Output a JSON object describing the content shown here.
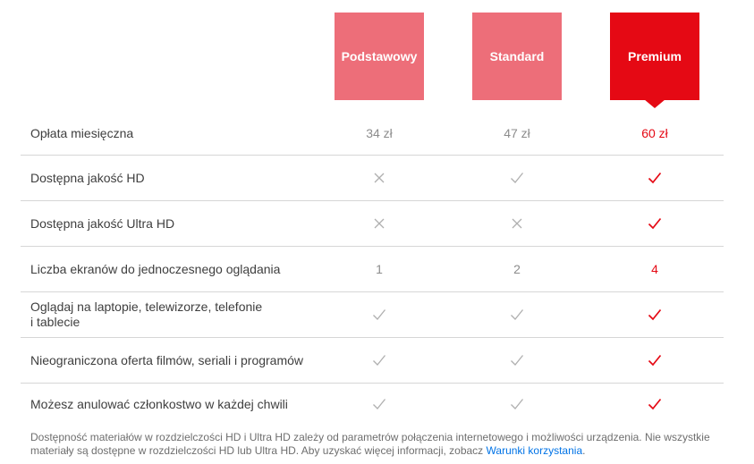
{
  "plans": [
    {
      "name": "Podstawowy",
      "selected": false
    },
    {
      "name": "Standard",
      "selected": false
    },
    {
      "name": "Premium",
      "selected": true
    }
  ],
  "rows": [
    {
      "label": "Opłata miesięczna",
      "values": [
        "34 zł",
        "47 zł",
        "60 zł"
      ]
    },
    {
      "label": "Dostępna jakość HD",
      "values": [
        "no",
        "yes",
        "yes"
      ]
    },
    {
      "label": "Dostępna jakość Ultra HD",
      "values": [
        "no",
        "no",
        "yes"
      ]
    },
    {
      "label": "Liczba ekranów do jednoczesnego oglądania",
      "values": [
        "1",
        "2",
        "4"
      ]
    },
    {
      "label": "Oglądaj na laptopie, telewizorze, telefonie\ni tablecie",
      "values": [
        "yes",
        "yes",
        "yes"
      ]
    },
    {
      "label": "Nieograniczona oferta filmów, seriali i programów",
      "values": [
        "yes",
        "yes",
        "yes"
      ]
    },
    {
      "label": "Możesz anulować członkostwo w każdej chwili",
      "values": [
        "yes",
        "yes",
        "yes"
      ]
    }
  ],
  "footnote": {
    "text": "Dostępność materiałów w rozdzielczości HD i Ultra HD zależy od parametrów połączenia internetowego i możliwości urządzenia. Nie wszystkie materiały są dostępne w rozdzielczości HD lub Ultra HD. Aby uzyskać więcej informacji, zobacz ",
    "link_label": "Warunki korzystania",
    "after_link": "."
  },
  "icons": {
    "yes": "check-icon",
    "no": "cross-icon"
  },
  "colors": {
    "brand_red": "#E50914",
    "plan_muted": "#ED6E79",
    "value_gray": "#8C8C8C",
    "icon_gray": "#AFAFAF",
    "label_text": "#3E3E3E",
    "divider": "#D6D6D6",
    "footnote_gray": "#6E6E6E",
    "link_blue": "#0073E6"
  }
}
